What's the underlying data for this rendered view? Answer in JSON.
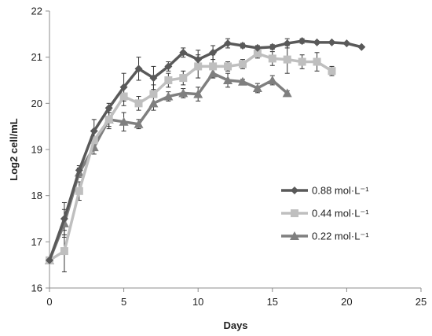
{
  "chart_data": {
    "type": "line",
    "xlabel": "Days",
    "ylabel": "Log2 cell/mL",
    "xlim": [
      0,
      25
    ],
    "ylim": [
      16,
      22
    ],
    "xticks": [
      0,
      5,
      10,
      15,
      20,
      25
    ],
    "yticks": [
      16,
      17,
      18,
      19,
      20,
      21,
      22
    ],
    "grid": false,
    "legend_position": "right",
    "series": [
      {
        "name": "0.88 mol·L⁻¹",
        "color": "#595959",
        "marker": "diamond",
        "x": [
          0,
          1,
          2,
          3,
          4,
          5,
          6,
          7,
          8,
          9,
          10,
          11,
          12,
          13,
          14,
          15,
          16,
          17,
          18,
          19,
          20,
          21
        ],
        "y": [
          16.6,
          17.5,
          18.55,
          19.4,
          19.9,
          20.35,
          20.75,
          20.55,
          20.8,
          21.1,
          20.95,
          21.1,
          21.3,
          21.25,
          21.2,
          21.22,
          21.3,
          21.35,
          21.32,
          21.32,
          21.3,
          21.22
        ],
        "err": [
          0,
          0.35,
          0.1,
          0.25,
          0.1,
          0.3,
          0.25,
          0.25,
          0.1,
          0.1,
          0.2,
          0.15,
          0.1,
          0.05,
          0.05,
          0.05,
          0.1,
          0.05,
          0,
          0,
          0,
          0
        ]
      },
      {
        "name": "0.44 mol·L⁻¹",
        "color": "#bfbfbf",
        "marker": "square",
        "x": [
          0,
          1,
          2,
          3,
          4,
          5,
          6,
          7,
          8,
          9,
          10,
          11,
          12,
          13,
          14,
          15,
          16,
          17,
          18,
          19
        ],
        "y": [
          16.6,
          16.8,
          18.1,
          19.2,
          19.65,
          20.15,
          20.0,
          20.2,
          20.5,
          20.55,
          20.8,
          20.8,
          20.8,
          20.85,
          21.08,
          20.97,
          20.95,
          20.9,
          20.9,
          20.7
        ],
        "err": [
          0,
          0.45,
          0.2,
          0.2,
          0.15,
          0.2,
          0.15,
          0.2,
          0.15,
          0.15,
          0.25,
          0.25,
          0.1,
          0.1,
          0.1,
          0.15,
          0.3,
          0.15,
          0.2,
          0.1
        ]
      },
      {
        "name": "0.22 mol·L⁻¹",
        "color": "#7f7f7f",
        "marker": "triangle",
        "x": [
          0,
          1,
          2,
          3,
          4,
          5,
          6,
          7,
          8,
          9,
          10,
          11,
          12,
          13,
          14,
          15,
          16
        ],
        "y": [
          16.6,
          17.4,
          18.5,
          19.05,
          19.65,
          19.6,
          19.55,
          20.0,
          20.15,
          20.22,
          20.2,
          20.65,
          20.5,
          20.47,
          20.33,
          20.5,
          20.22
        ],
        "err": [
          0,
          0.3,
          0.1,
          0.15,
          0.2,
          0.2,
          0.1,
          0.15,
          0.1,
          0.1,
          0.15,
          0.1,
          0.15,
          0.05,
          0.1,
          0.1,
          0.05
        ]
      }
    ]
  }
}
